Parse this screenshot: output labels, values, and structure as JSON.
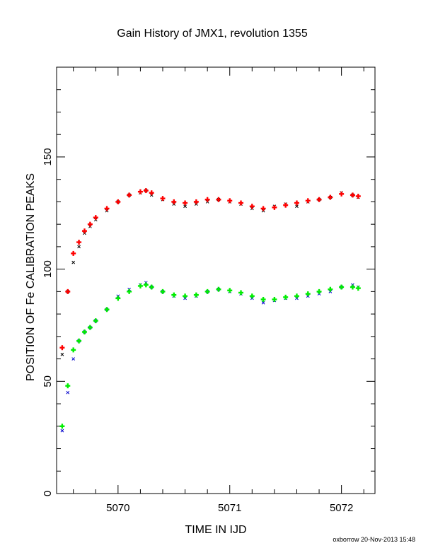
{
  "chart_data": {
    "type": "scatter",
    "title": "Gain History of JMX1, revolution 1355",
    "xlabel": "TIME IN IJD",
    "ylabel": "POSITION OF Fe CALIBRATION PEAKS",
    "xlim": [
      5069.45,
      5072.3
    ],
    "ylim": [
      0,
      190
    ],
    "x_ticks": [
      5070,
      5071,
      5072
    ],
    "x_tick_labels": [
      "5070",
      "5071",
      "5072"
    ],
    "y_ticks": [
      0,
      50,
      100,
      150
    ],
    "y_tick_labels": [
      "0",
      "50",
      "100",
      "150"
    ],
    "grid": false,
    "series": [
      {
        "color": "#000000",
        "marker": "x",
        "x": [
          5069.5,
          5069.55,
          5069.6,
          5069.65,
          5069.7,
          5069.75,
          5069.8,
          5069.9,
          5070.0,
          5070.1,
          5070.2,
          5070.25,
          5070.3,
          5070.4,
          5070.5,
          5070.6,
          5070.7,
          5070.8,
          5070.9,
          5071.0,
          5071.1,
          5071.2,
          5071.3,
          5071.4,
          5071.5,
          5071.6,
          5071.7,
          5071.8,
          5071.9,
          5072.0,
          5072.1,
          5072.15
        ],
        "y": [
          62,
          90,
          103,
          110,
          116,
          119,
          122,
          126,
          130,
          133,
          134,
          135,
          133,
          131,
          129,
          128,
          129,
          130,
          131,
          130,
          129,
          127,
          126,
          128,
          129,
          128,
          130,
          131,
          132,
          134,
          133,
          132
        ]
      },
      {
        "color": "#ff0000",
        "marker": "+",
        "x": [
          5069.5,
          5069.55,
          5069.6,
          5069.65,
          5069.7,
          5069.75,
          5069.8,
          5069.9,
          5070.0,
          5070.1,
          5070.2,
          5070.25,
          5070.3,
          5070.4,
          5070.5,
          5070.6,
          5070.7,
          5070.8,
          5070.9,
          5071.0,
          5071.1,
          5071.2,
          5071.3,
          5071.4,
          5071.5,
          5071.6,
          5071.7,
          5071.8,
          5071.9,
          5072.0,
          5072.1,
          5072.15
        ],
        "y": [
          65,
          90,
          107,
          112,
          117,
          120,
          123,
          127,
          130,
          133,
          134.5,
          135,
          134,
          131.5,
          130,
          129.5,
          130,
          131,
          131,
          130.5,
          129.5,
          128,
          127,
          127.5,
          128.5,
          129.5,
          130.5,
          131,
          132,
          133.5,
          133,
          132.5
        ]
      },
      {
        "color": "#0000cc",
        "marker": "x",
        "x": [
          5069.5,
          5069.55,
          5069.6,
          5069.65,
          5069.7,
          5069.75,
          5069.8,
          5069.9,
          5070.0,
          5070.1,
          5070.2,
          5070.25,
          5070.3,
          5070.4,
          5070.5,
          5070.6,
          5070.7,
          5070.8,
          5070.9,
          5071.0,
          5071.1,
          5071.2,
          5071.3,
          5071.4,
          5071.5,
          5071.6,
          5071.7,
          5071.8,
          5071.9,
          5072.0,
          5072.1,
          5072.15
        ],
        "y": [
          28,
          45,
          60,
          68,
          72,
          74,
          77,
          82,
          88,
          91,
          93,
          94,
          92,
          90,
          88,
          87,
          88,
          90,
          91,
          90,
          89,
          87,
          85,
          86,
          87,
          87,
          88,
          89,
          90,
          92,
          93,
          92
        ]
      },
      {
        "color": "#00ee00",
        "marker": "+",
        "x": [
          5069.5,
          5069.55,
          5069.6,
          5069.65,
          5069.7,
          5069.75,
          5069.8,
          5069.9,
          5070.0,
          5070.1,
          5070.2,
          5070.25,
          5070.3,
          5070.4,
          5070.5,
          5070.6,
          5070.7,
          5070.8,
          5070.9,
          5071.0,
          5071.1,
          5071.2,
          5071.3,
          5071.4,
          5071.5,
          5071.6,
          5071.7,
          5071.8,
          5071.9,
          5072.0,
          5072.1,
          5072.15
        ],
        "y": [
          30,
          48,
          64,
          68,
          72,
          74,
          77,
          82,
          87,
          90,
          92.5,
          93,
          92,
          90,
          88.5,
          88,
          88.5,
          90,
          91,
          90.5,
          89.5,
          88,
          86.5,
          86.5,
          87.5,
          88,
          89,
          90,
          91,
          92,
          92,
          91.5
        ]
      }
    ]
  },
  "footer": "oxborrow 20-Nov-2013 15:48"
}
